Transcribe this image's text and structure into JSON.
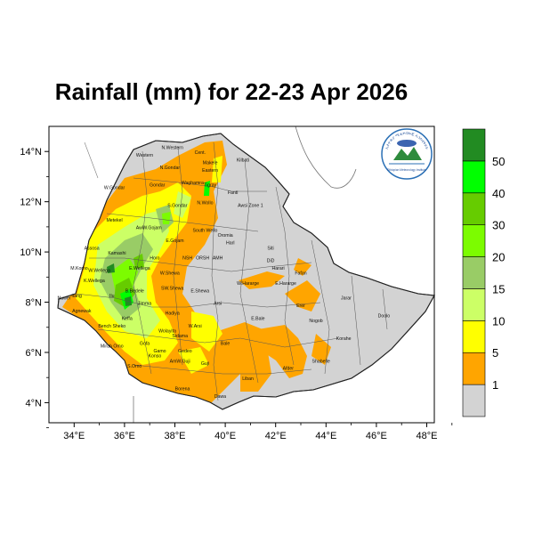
{
  "map": {
    "title": "Rainfall (mm) for 22-23 Apr 2026",
    "lon_ticks": [
      "34°E",
      "36°E",
      "38°E",
      "40°E",
      "42°E",
      "44°E",
      "46°E",
      "48°E"
    ],
    "lat_ticks": [
      "14°N",
      "12°N",
      "10°N",
      "8°N",
      "6°N",
      "4°N"
    ],
    "lon_range": [
      33,
      48.3
    ],
    "lat_range": [
      3.2,
      15
    ]
  },
  "legend": {
    "labels": [
      "1",
      "5",
      "10",
      "15",
      "20",
      "30",
      "40",
      "50"
    ],
    "bins": [
      {
        "color": "#d3d3d3"
      },
      {
        "color": "#ffa500"
      },
      {
        "color": "#ffff00"
      },
      {
        "color": "#ccff66"
      },
      {
        "color": "#99cc66"
      },
      {
        "color": "#7cfc00"
      },
      {
        "color": "#66cc00"
      },
      {
        "color": "#00ff00"
      },
      {
        "color": "#228b22"
      }
    ]
  },
  "logo": {
    "text": "ኢትዮጵያ ሚቲዎሮሎጂ ኢንስቲትዩት",
    "subtext": "Ethiopian Meteorology Institute"
  },
  "regions": [
    {
      "name": "Western",
      "lon": 36.8,
      "lat": 13.8
    },
    {
      "name": "N.Western",
      "lon": 37.9,
      "lat": 14.1
    },
    {
      "name": "Cent.",
      "lon": 39.0,
      "lat": 13.9
    },
    {
      "name": "Makele",
      "lon": 39.4,
      "lat": 13.5
    },
    {
      "name": "Eastern",
      "lon": 39.4,
      "lat": 13.2
    },
    {
      "name": "Kilbati",
      "lon": 40.7,
      "lat": 13.6
    },
    {
      "name": "N.Gondar",
      "lon": 37.8,
      "lat": 13.3
    },
    {
      "name": "W.Gondar",
      "lon": 35.6,
      "lat": 12.5
    },
    {
      "name": "Gondar",
      "lon": 37.3,
      "lat": 12.6
    },
    {
      "name": "Waghamra",
      "lon": 38.7,
      "lat": 12.7
    },
    {
      "name": "Tigray",
      "lon": 39.4,
      "lat": 12.6
    },
    {
      "name": "Fanti",
      "lon": 40.3,
      "lat": 12.3
    },
    {
      "name": "S.Gondar",
      "lon": 38.1,
      "lat": 11.8
    },
    {
      "name": "N.Wollo",
      "lon": 39.2,
      "lat": 11.9
    },
    {
      "name": "Awsi Zone 1",
      "lon": 41.0,
      "lat": 11.8
    },
    {
      "name": "Metekel",
      "lon": 35.6,
      "lat": 11.2
    },
    {
      "name": "Awi",
      "lon": 36.6,
      "lat": 10.9
    },
    {
      "name": "W.Gojam",
      "lon": 37.1,
      "lat": 10.9
    },
    {
      "name": "South Wello",
      "lon": 39.2,
      "lat": 10.8
    },
    {
      "name": "Oromia",
      "lon": 40.0,
      "lat": 10.6
    },
    {
      "name": "E.Gojam",
      "lon": 38.0,
      "lat": 10.4
    },
    {
      "name": "Harl",
      "lon": 40.2,
      "lat": 10.3
    },
    {
      "name": "Assosa",
      "lon": 34.7,
      "lat": 10.1
    },
    {
      "name": "Siti",
      "lon": 41.8,
      "lat": 10.1
    },
    {
      "name": "Kamashi",
      "lon": 35.7,
      "lat": 9.9
    },
    {
      "name": "Horo",
      "lon": 37.2,
      "lat": 9.7
    },
    {
      "name": "NSH",
      "lon": 38.5,
      "lat": 9.7
    },
    {
      "name": "ORSH",
      "lon": 39.1,
      "lat": 9.7
    },
    {
      "name": "AMH",
      "lon": 39.7,
      "lat": 9.7
    },
    {
      "name": "DiD",
      "lon": 41.8,
      "lat": 9.6
    },
    {
      "name": "Harari",
      "lon": 42.1,
      "lat": 9.3
    },
    {
      "name": "Fafan",
      "lon": 43.0,
      "lat": 9.1
    },
    {
      "name": "M.Komo",
      "lon": 34.2,
      "lat": 9.3
    },
    {
      "name": "W.Wellega",
      "lon": 35.0,
      "lat": 9.2
    },
    {
      "name": "E.Wellega",
      "lon": 36.6,
      "lat": 9.3
    },
    {
      "name": "W.Shewa",
      "lon": 37.8,
      "lat": 9.1
    },
    {
      "name": "K.Wellega",
      "lon": 34.8,
      "lat": 8.8
    },
    {
      "name": "B.Bedele",
      "lon": 36.4,
      "lat": 8.4
    },
    {
      "name": "SW.Shewa",
      "lon": 37.9,
      "lat": 8.5
    },
    {
      "name": "E.Shewa",
      "lon": 39.0,
      "lat": 8.4
    },
    {
      "name": "W.Hararge",
      "lon": 40.9,
      "lat": 8.7
    },
    {
      "name": "E.Hararge",
      "lon": 42.4,
      "lat": 8.7
    },
    {
      "name": "Jarar",
      "lon": 44.8,
      "lat": 8.1
    },
    {
      "name": "Itang",
      "lon": 34.1,
      "lat": 8.2
    },
    {
      "name": "Nuwer",
      "lon": 33.6,
      "lat": 8.1
    },
    {
      "name": "Ilu",
      "lon": 35.5,
      "lat": 8.2
    },
    {
      "name": "Jimma",
      "lon": 36.8,
      "lat": 7.9
    },
    {
      "name": "Arsi",
      "lon": 39.7,
      "lat": 7.9
    },
    {
      "name": "Erer",
      "lon": 43.0,
      "lat": 7.8
    },
    {
      "name": "Agnewak",
      "lon": 34.3,
      "lat": 7.6
    },
    {
      "name": "Hadiya",
      "lon": 37.9,
      "lat": 7.5
    },
    {
      "name": "Keffa",
      "lon": 36.1,
      "lat": 7.3
    },
    {
      "name": "Bench Sheko",
      "lon": 35.5,
      "lat": 7.0
    },
    {
      "name": "E.Bale",
      "lon": 41.3,
      "lat": 7.3
    },
    {
      "name": "Nogob",
      "lon": 43.6,
      "lat": 7.2
    },
    {
      "name": "Doolo",
      "lon": 46.3,
      "lat": 7.4
    },
    {
      "name": "W.Arsi",
      "lon": 38.8,
      "lat": 7.0
    },
    {
      "name": "Wolayita",
      "lon": 37.7,
      "lat": 6.8
    },
    {
      "name": "Sidama",
      "lon": 38.2,
      "lat": 6.6
    },
    {
      "name": "Korahe",
      "lon": 44.7,
      "lat": 6.5
    },
    {
      "name": "Bale",
      "lon": 40.0,
      "lat": 6.3
    },
    {
      "name": "Mirab Omo",
      "lon": 35.5,
      "lat": 6.2
    },
    {
      "name": "Gofa",
      "lon": 36.8,
      "lat": 6.3
    },
    {
      "name": "Gamo",
      "lon": 37.4,
      "lat": 6.0
    },
    {
      "name": "Gedeo",
      "lon": 38.4,
      "lat": 6.0
    },
    {
      "name": "Konso",
      "lon": 37.2,
      "lat": 5.8
    },
    {
      "name": "AmW.Guji",
      "lon": 38.2,
      "lat": 5.6
    },
    {
      "name": "Shabelle",
      "lon": 43.8,
      "lat": 5.6
    },
    {
      "name": "S.Omo",
      "lon": 36.4,
      "lat": 5.4
    },
    {
      "name": "Guji",
      "lon": 39.2,
      "lat": 5.5
    },
    {
      "name": "Afder",
      "lon": 42.5,
      "lat": 5.3
    },
    {
      "name": "Liban",
      "lon": 40.9,
      "lat": 4.9
    },
    {
      "name": "Borena",
      "lon": 38.3,
      "lat": 4.5
    },
    {
      "name": "Dawa",
      "lon": 39.8,
      "lat": 4.2
    }
  ],
  "colors": {
    "no_data": "#ffffff",
    "land_base": "#d3d3d3",
    "boundary": "#555555",
    "frame": "#000000"
  }
}
